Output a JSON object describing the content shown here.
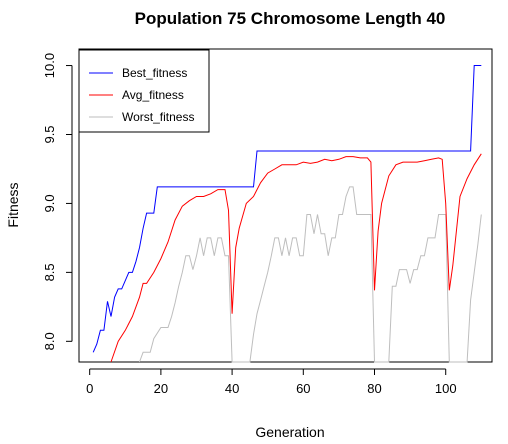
{
  "chart_data": {
    "type": "line",
    "title": "Population 75  Chromosome Length 40",
    "xlabel": "Generation",
    "ylabel": "Fitness",
    "xlim": [
      -3,
      113
    ],
    "ylim": [
      7.85,
      10.12
    ],
    "xticks": [
      0,
      20,
      40,
      60,
      80,
      100
    ],
    "yticks": [
      8.0,
      8.5,
      9.0,
      9.5,
      10.0
    ],
    "ytick_labels": [
      "8.0",
      "8.5",
      "9.0",
      "9.5",
      "10.0"
    ],
    "grid": false,
    "legend_position": "top-left",
    "series": [
      {
        "name": "Best_fitness",
        "color": "#0000ff",
        "x": [
          1,
          2,
          3,
          4,
          5,
          6,
          7,
          8,
          9,
          10,
          11,
          12,
          13,
          14,
          15,
          16,
          17,
          18,
          19,
          20,
          46,
          47,
          107,
          108,
          110
        ],
        "y": [
          7.92,
          7.98,
          8.08,
          8.08,
          8.29,
          8.18,
          8.32,
          8.38,
          8.38,
          8.44,
          8.5,
          8.5,
          8.58,
          8.68,
          8.82,
          8.93,
          8.93,
          8.93,
          9.12,
          9.12,
          9.12,
          9.38,
          9.38,
          10.0,
          10.0
        ]
      },
      {
        "name": "Avg_fitness",
        "color": "#ff0000",
        "x": [
          6,
          8,
          10,
          12,
          14,
          15,
          16,
          18,
          20,
          22,
          24,
          26,
          28,
          30,
          32,
          34,
          36,
          37,
          38,
          39,
          40,
          41,
          42,
          44,
          46,
          48,
          50,
          52,
          54,
          56,
          58,
          60,
          62,
          64,
          66,
          68,
          70,
          72,
          74,
          76,
          78,
          79,
          80,
          81,
          82,
          84,
          86,
          88,
          90,
          92,
          94,
          96,
          98,
          99,
          100,
          101,
          102,
          104,
          106,
          108,
          110
        ],
        "y": [
          7.85,
          8.0,
          8.08,
          8.18,
          8.32,
          8.42,
          8.42,
          8.5,
          8.6,
          8.72,
          8.88,
          8.98,
          9.02,
          9.05,
          9.05,
          9.07,
          9.1,
          9.1,
          9.1,
          8.95,
          8.2,
          8.68,
          8.82,
          9.0,
          9.05,
          9.15,
          9.22,
          9.25,
          9.28,
          9.28,
          9.28,
          9.3,
          9.29,
          9.3,
          9.32,
          9.31,
          9.32,
          9.34,
          9.34,
          9.33,
          9.33,
          9.3,
          8.37,
          8.8,
          9.0,
          9.2,
          9.28,
          9.3,
          9.3,
          9.3,
          9.31,
          9.32,
          9.33,
          9.32,
          9.0,
          8.37,
          8.55,
          9.05,
          9.18,
          9.28,
          9.36
        ]
      },
      {
        "name": "Worst_fitness",
        "color": "#bebebe",
        "x": [
          14,
          15,
          17,
          18,
          20,
          22,
          23,
          24,
          25,
          26,
          27,
          28,
          29,
          30,
          31,
          32,
          33,
          34,
          35,
          36,
          37,
          38,
          39,
          40,
          45,
          46,
          47,
          48,
          49,
          50,
          51,
          52,
          53,
          54,
          55,
          56,
          57,
          58,
          59,
          60,
          61,
          62,
          63,
          64,
          65,
          66,
          67,
          68,
          69,
          70,
          71,
          72,
          73,
          74,
          75,
          76,
          77,
          78,
          79,
          80,
          84,
          85,
          86,
          87,
          88,
          89,
          90,
          91,
          92,
          93,
          94,
          95,
          96,
          97,
          98,
          99,
          100,
          101,
          106,
          107,
          108,
          109,
          110
        ],
        "y": [
          7.85,
          7.92,
          7.92,
          8.02,
          8.1,
          8.1,
          8.18,
          8.28,
          8.4,
          8.5,
          8.62,
          8.62,
          8.52,
          8.62,
          8.75,
          8.62,
          8.75,
          8.75,
          8.62,
          8.75,
          8.75,
          8.62,
          8.62,
          7.85,
          7.85,
          8.05,
          8.2,
          8.3,
          8.4,
          8.5,
          8.62,
          8.75,
          8.75,
          8.62,
          8.75,
          8.62,
          8.75,
          8.75,
          8.62,
          8.62,
          8.92,
          8.92,
          8.78,
          8.92,
          8.78,
          8.78,
          8.62,
          8.75,
          8.75,
          8.92,
          8.92,
          9.05,
          9.12,
          9.12,
          8.92,
          8.92,
          8.92,
          8.92,
          8.92,
          7.85,
          7.85,
          8.4,
          8.4,
          8.52,
          8.52,
          8.52,
          8.42,
          8.52,
          8.52,
          8.62,
          8.62,
          8.75,
          8.75,
          8.75,
          8.92,
          8.92,
          8.92,
          7.85,
          7.85,
          8.3,
          8.5,
          8.7,
          8.92
        ]
      }
    ]
  }
}
